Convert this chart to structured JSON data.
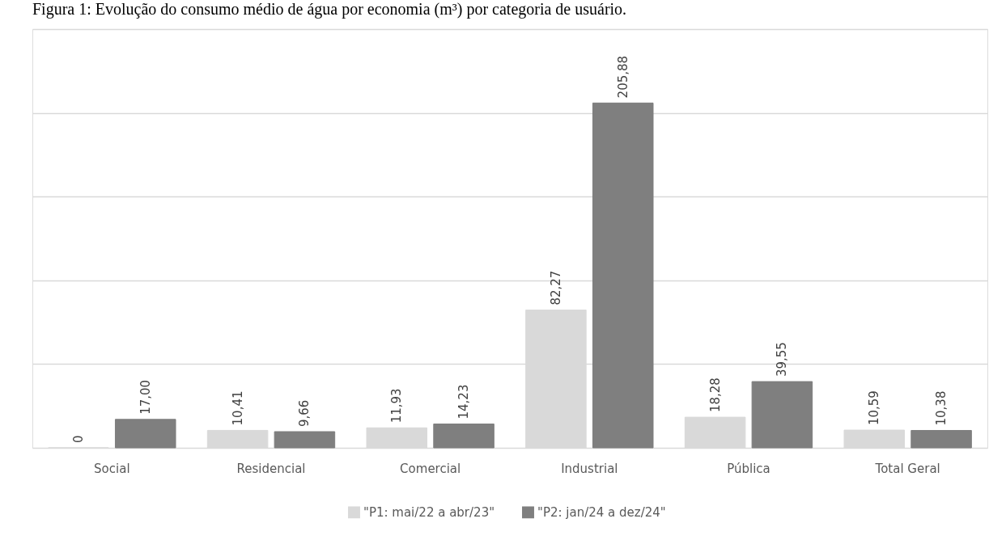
{
  "chart_data": {
    "type": "bar",
    "title": "Figura 1: Evolução do consumo médio de água por economia (m³) por categoria de usuário.",
    "categories": [
      "Social",
      "Residencial",
      "Comercial",
      "Industrial",
      "Pública",
      "Total Geral"
    ],
    "series": [
      {
        "name": "\"P1: mai/22 a abr/23\"",
        "color": "#d9d9d9",
        "values": [
          0,
          10.41,
          11.93,
          82.27,
          18.28,
          10.59
        ],
        "value_labels": [
          "0",
          "10,41",
          "11,93",
          "82,27",
          "18,28",
          "10,59"
        ]
      },
      {
        "name": "\"P2: jan/24 a dez/24\"",
        "color": "#7f7f7f",
        "values": [
          17.0,
          9.66,
          14.23,
          205.88,
          39.55,
          10.38
        ],
        "value_labels": [
          "17,00",
          "9,66",
          "14,23",
          "205,88",
          "39,55",
          "10,38"
        ]
      }
    ],
    "ylim": [
      0,
      250
    ],
    "yticks": [
      {
        "value": 0,
        "label": null
      },
      {
        "value": 50,
        "label": null
      },
      {
        "value": 100,
        "label": null
      },
      {
        "value": 150,
        "label": null
      },
      {
        "value": 200,
        "label": null
      },
      {
        "value": 250,
        "label": null
      }
    ],
    "tick_labels": "x",
    "grid": "y",
    "legend": "bottom"
  }
}
